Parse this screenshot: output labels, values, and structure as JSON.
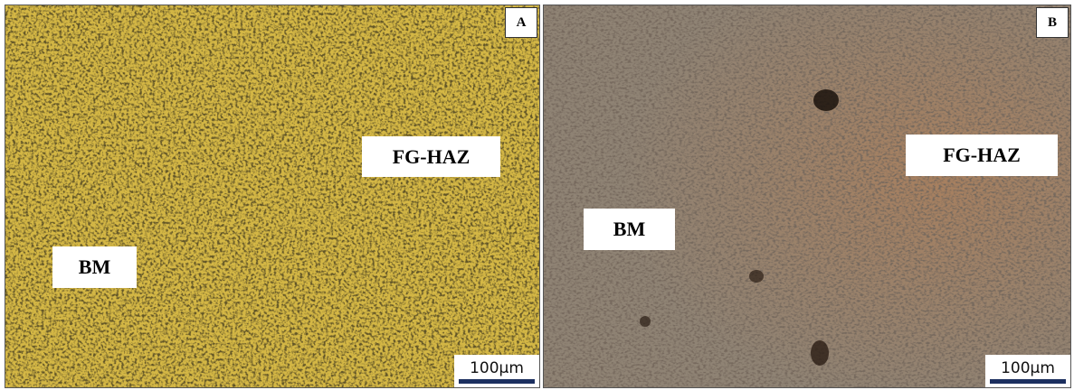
{
  "panels": [
    {
      "letter": "A",
      "labels": [
        "FG-HAZ",
        "BM"
      ],
      "scale_bar": "100µm"
    },
    {
      "letter": "B",
      "labels": [
        "FG-HAZ",
        "BM"
      ],
      "scale_bar": "100µm"
    }
  ]
}
